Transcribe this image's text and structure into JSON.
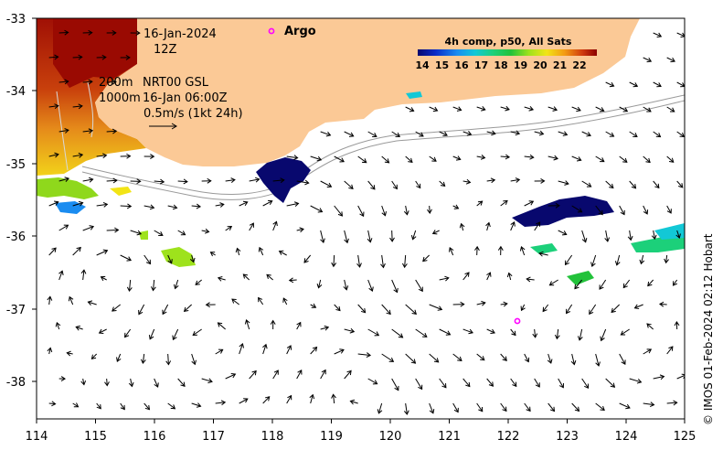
{
  "map": {
    "date": "16-Jan-2024",
    "hour": "12Z",
    "contour_shallow": "200m",
    "contour_deep": "1000m",
    "current_source": "NRT00 GSL",
    "current_time": "16-Jan 06:00Z",
    "scale_vector": "0.5m/s (1kt 24h)",
    "argo_label": "Argo",
    "colorbar_title": "4h comp, p50, All Sats",
    "colorbar_ticks": [
      "14",
      "15",
      "16",
      "17",
      "18",
      "19",
      "20",
      "21",
      "22"
    ],
    "credit": "© IMOS 01-Feb-2024 02:12 Hobart",
    "lon_ticks": [
      "114",
      "115",
      "116",
      "117",
      "118",
      "119",
      "120",
      "121",
      "122",
      "123",
      "124",
      "125"
    ],
    "lat_ticks": [
      "-33",
      "-34",
      "-35",
      "-36",
      "-37",
      "-38"
    ],
    "argo_float": {
      "lon": 122.15,
      "lat": -37.17
    },
    "extent": {
      "lon": [
        114,
        125
      ],
      "lat": [
        -38.55,
        -33.0
      ]
    },
    "colors": {
      "land": "#fbc996",
      "argo": "#ff00ff",
      "sst_scale": [
        "#08086e",
        "#0a2bc8",
        "#1a8cf0",
        "#12c8d6",
        "#1cd07a",
        "#22c23a",
        "#9ee21c",
        "#f2e416",
        "#f39a12",
        "#cf3a10",
        "#8b0000"
      ]
    }
  }
}
